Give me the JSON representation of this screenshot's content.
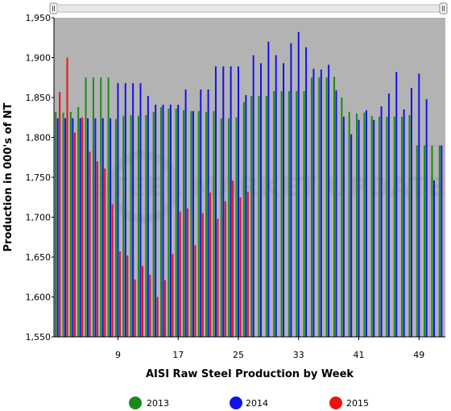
{
  "chart_data": {
    "type": "bar",
    "xlabel": "AISI Raw Steel Production by Week",
    "ylabel": "Production in 000's of NT",
    "ylim": [
      1550,
      1950
    ],
    "yticks": [
      "1,550",
      "1,600",
      "1,650",
      "1,700",
      "1,750",
      "1,800",
      "1,850",
      "1,900",
      "1,950"
    ],
    "xticks": [
      "9",
      "17",
      "25",
      "33",
      "41",
      "49"
    ],
    "xtick_weeks": [
      9,
      17,
      25,
      33,
      41,
      49
    ],
    "weeks": [
      1,
      52
    ],
    "grid": false,
    "plot_background": "#b3b3b3",
    "legend_position": "bottom",
    "watermark": "STEEL MARKET UPDATE",
    "series": [
      {
        "name": "2013",
        "color": "#1a8a1a",
        "values": [
          1832,
          1831,
          1832,
          1838,
          1875,
          1875,
          1875,
          1875,
          1823,
          1827,
          1828,
          1827,
          1828,
          1832,
          1838,
          1836,
          1836,
          1834,
          1833,
          1833,
          1832,
          1833,
          1824,
          1824,
          1825,
          1844,
          1852,
          1852,
          1852,
          1858,
          1858,
          1858,
          1858,
          1858,
          1875,
          1875,
          1875,
          1876,
          1850,
          1832,
          1830,
          1831,
          1827,
          1826,
          1826,
          1826,
          1826,
          1828,
          1790,
          1790,
          1790,
          1790
        ]
      },
      {
        "name": "2014",
        "color": "#1111ee",
        "values": [
          1824,
          1824,
          1824,
          1824,
          1824,
          1824,
          1824,
          1824,
          1868,
          1868,
          1868,
          1868,
          1852,
          1841,
          1841,
          1841,
          1841,
          1860,
          1833,
          1860,
          1860,
          1889,
          1889,
          1889,
          1889,
          1853,
          1903,
          1893,
          1920,
          1903,
          1893,
          1918,
          1932,
          1913,
          1886,
          1885,
          1891,
          1859,
          1826,
          1804,
          1822,
          1834,
          1822,
          1839,
          1855,
          1882,
          1835,
          1862,
          1880,
          1848,
          1746,
          1790
        ]
      },
      {
        "name": "2015",
        "color": "#ee1111",
        "values": [
          1857,
          1900,
          1806,
          1825,
          1782,
          1770,
          1761,
          1716,
          1657,
          1652,
          1622,
          1639,
          1628,
          1600,
          1621,
          1654,
          1707,
          1711,
          1665,
          1705,
          1731,
          1698,
          1720,
          1746,
          1725,
          1732
        ]
      }
    ]
  },
  "legend": [
    {
      "label": "2013",
      "color": "#1a8a1a"
    },
    {
      "label": "2014",
      "color": "#1111ee"
    },
    {
      "label": "2015",
      "color": "#ee1111"
    }
  ]
}
